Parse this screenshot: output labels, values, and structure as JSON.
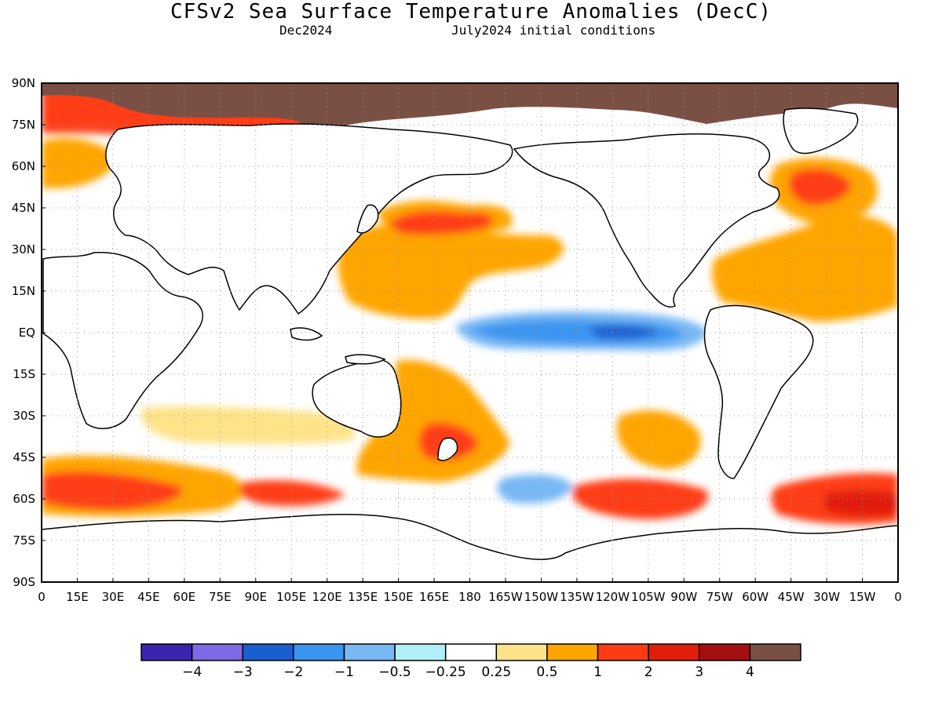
{
  "title": "CFSv2 Sea Surface Temperature Anomalies (DecC)",
  "subtitle_left": "Dec2024",
  "subtitle_right": "July2024 initial conditions",
  "y_ticks": [
    "90N",
    "75N",
    "60N",
    "45N",
    "30N",
    "15N",
    "EQ",
    "15S",
    "30S",
    "45S",
    "60S",
    "75S",
    "90S"
  ],
  "x_ticks": [
    "0",
    "15E",
    "30E",
    "45E",
    "60E",
    "75E",
    "90E",
    "105E",
    "120E",
    "135E",
    "150E",
    "165E",
    "180",
    "165W",
    "150W",
    "135W",
    "120W",
    "105W",
    "90W",
    "75W",
    "60W",
    "45W",
    "30W",
    "15W",
    "0"
  ],
  "colorbar": {
    "colors": [
      "#3a25b0",
      "#7e6ae6",
      "#1a5fd0",
      "#3a95f0",
      "#78b8f5",
      "#b2eef8",
      "#ffffff",
      "#ffe38a",
      "#ffa500",
      "#ff3c14",
      "#e01e0a",
      "#a50f0f",
      "#7b5044"
    ],
    "labels": [
      "-4",
      "-3",
      "-2",
      "-1",
      "-0.5",
      "-0.25",
      "0.25",
      "0.5",
      "1",
      "2",
      "3",
      "4"
    ]
  },
  "map_data": {
    "type": "filled-contour-map",
    "variable": "Sea Surface Temperature Anomalies",
    "units": "DecC",
    "lat_range": [
      -90,
      90
    ],
    "lon_range": [
      0,
      360
    ],
    "regions": [
      {
        "area": "Equatorial Pacific (Nino 3-3.4)",
        "anomaly_range": [
          -2,
          -0.5
        ]
      },
      {
        "area": "Northwest Pacific",
        "anomaly_range": [
          0.5,
          2
        ]
      },
      {
        "area": "Southwest Pacific / Tasman Sea",
        "anomaly_range": [
          0.5,
          2
        ]
      },
      {
        "area": "North Atlantic",
        "anomaly_range": [
          0.5,
          2
        ]
      },
      {
        "area": "Southern Ocean (Indian sector)",
        "anomaly_range": [
          1,
          3
        ]
      },
      {
        "area": "Southern Ocean (South Pacific)",
        "anomaly_range": [
          1,
          3
        ]
      },
      {
        "area": "Southern Ocean (South Atlantic)",
        "anomaly_range": [
          1,
          3
        ]
      },
      {
        "area": "Arctic sea ice",
        "anomaly_range": [
          4,
          4
        ]
      }
    ]
  }
}
